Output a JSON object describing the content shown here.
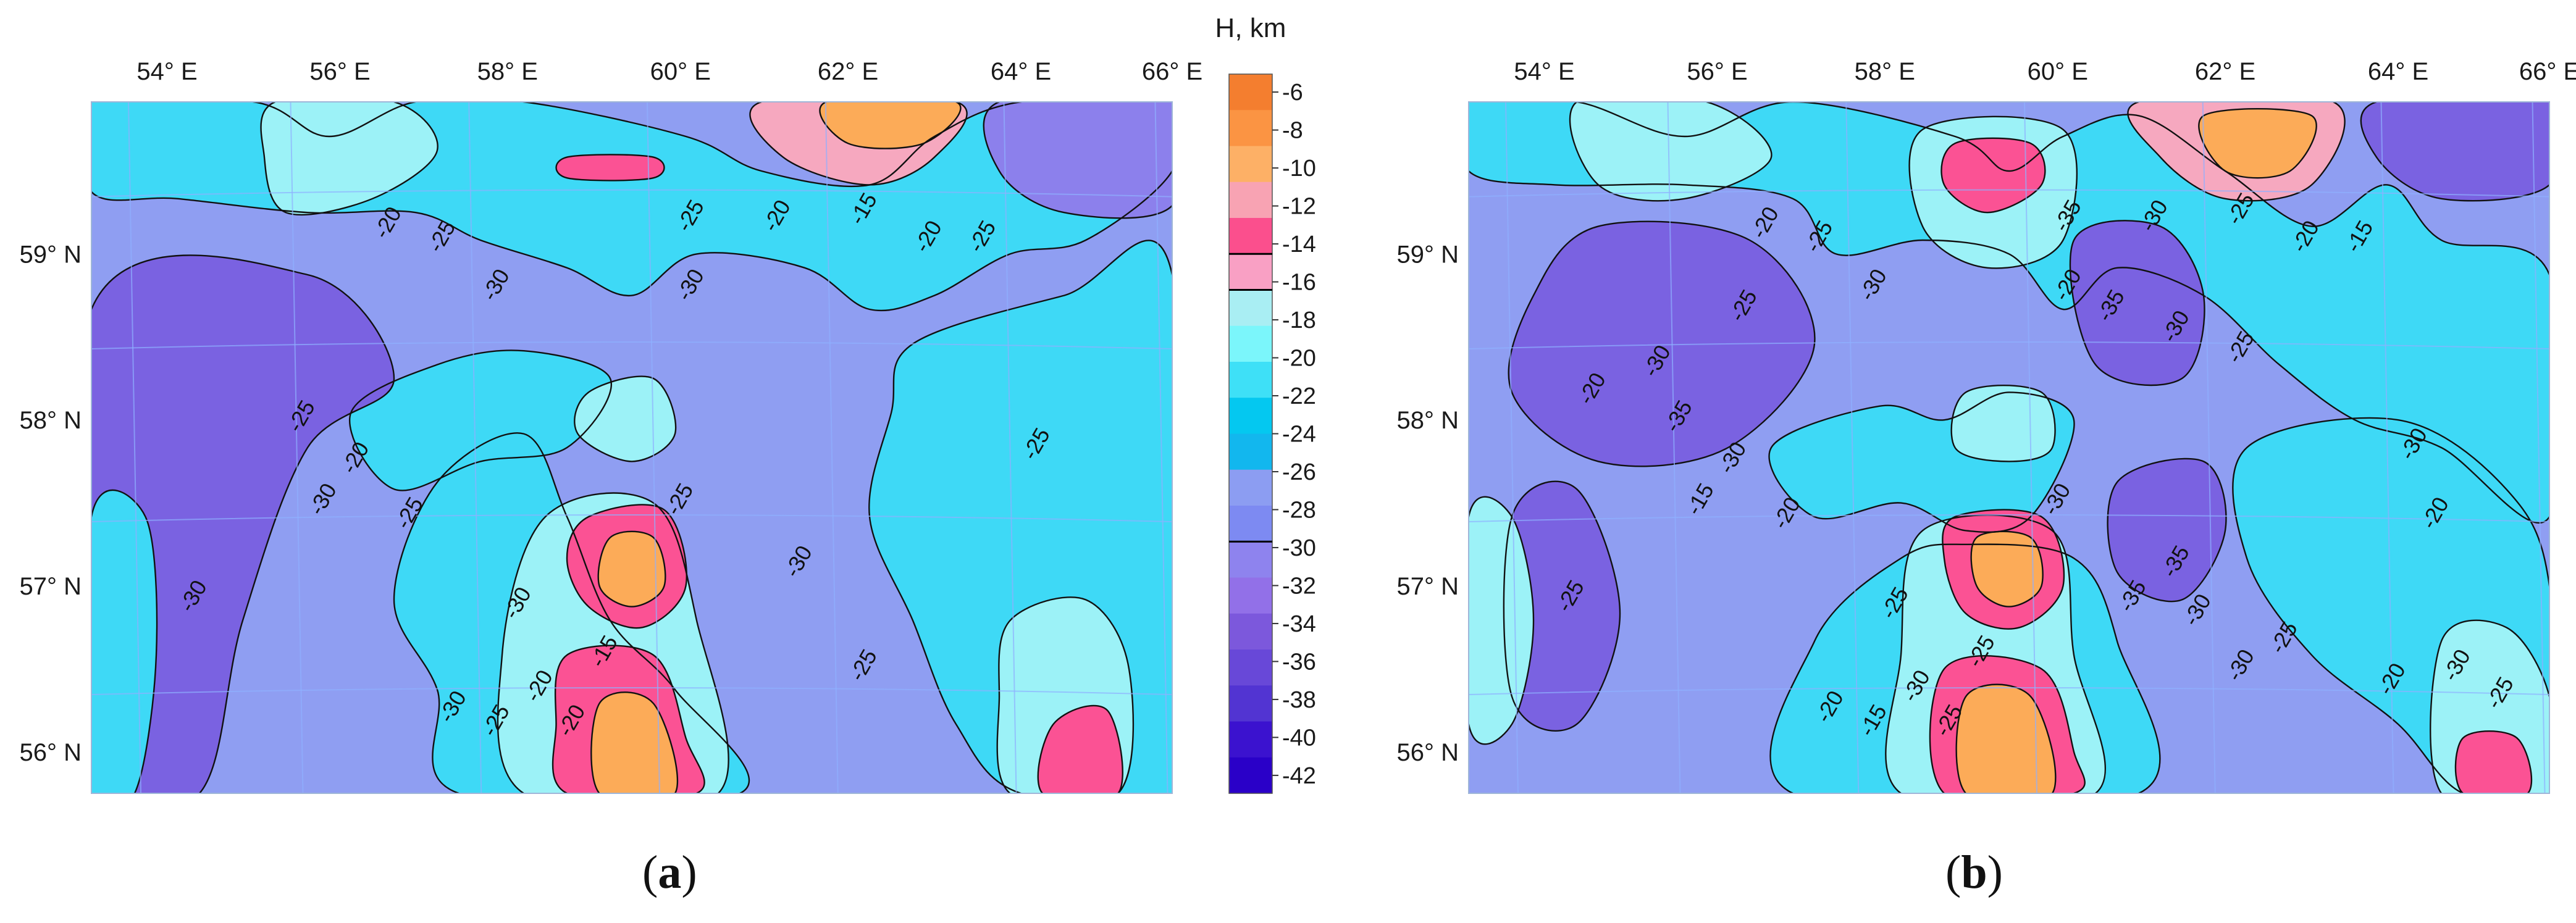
{
  "panels": [
    {
      "caption_open": "(",
      "caption_letter": "a",
      "caption_close": ")",
      "lon_labels": [
        "54° E",
        "56° E",
        "58° E",
        "60° E",
        "62° E",
        "64° E",
        "66° E"
      ],
      "lat_labels": [
        "59° N",
        "58° N",
        "57° N",
        "56° N"
      ],
      "contour_labels": [
        "-20",
        "-25",
        "-30",
        "-25",
        "-20",
        "-15",
        "-20",
        "-25",
        "-30",
        "-25",
        "-20",
        "-30",
        "-25",
        "-30",
        "-20",
        "-15",
        "-25",
        "-30",
        "-25",
        "-30",
        "-30",
        "-25",
        "-20",
        "-25"
      ]
    },
    {
      "caption_open": "(",
      "caption_letter": "b",
      "caption_close": ")",
      "lon_labels": [
        "54° E",
        "56° E",
        "58° E",
        "60° E",
        "62° E",
        "64° E",
        "66° E"
      ],
      "lat_labels": [
        "59° N",
        "58° N",
        "57° N",
        "56° N"
      ],
      "contour_labels": [
        "-20",
        "-25",
        "-30",
        "-35",
        "-30",
        "-25",
        "-20",
        "-15",
        "-20",
        "-35",
        "-30",
        "-15",
        "-20",
        "-25",
        "-30",
        "-25",
        "-30",
        "-35",
        "-30",
        "-25",
        "-20",
        "-15",
        "-25",
        "-30",
        "-35",
        "-30",
        "-25",
        "-20",
        "-30",
        "-25",
        "-35",
        "-30",
        "-25",
        "-20",
        "-30",
        "-25",
        "-20"
      ]
    }
  ],
  "colorbar": {
    "title": "H, km",
    "labels": [
      "-6",
      "-8",
      "-10",
      "-12",
      "-14",
      "-16",
      "-18",
      "-20",
      "-22",
      "-24",
      "-26",
      "-28",
      "-30",
      "-32",
      "-34",
      "-36",
      "-38",
      "-40",
      "-42"
    ],
    "colors": [
      "#f47e2f",
      "#fb9443",
      "#fdb066",
      "#f8a3b3",
      "#fb4f8d",
      "#f9a0c4",
      "#a9eef3",
      "#7bf6fb",
      "#3ee0f7",
      "#04c8f0",
      "#12b7ee",
      "#8c9df2",
      "#7d8af2",
      "#8e83ee",
      "#9270e8",
      "#7c58dc",
      "#6848d8",
      "#5234d2",
      "#3b12cf",
      "#2a00c8"
    ]
  },
  "style": {
    "background_fill": "#8f9ef2",
    "cyan": "#3ed9f6",
    "light_cyan": "#9cf2f7",
    "pale_cyan": "#c9f7fa",
    "deep_blue": "#1ab9ee",
    "violet": "#8c80ec",
    "dark_violet": "#7a62e1",
    "pink": "#fb5294",
    "light_pink": "#f6a8bf",
    "orange": "#fcab58",
    "contour_color": "#111111",
    "grid_color": "#8fb0ff"
  }
}
